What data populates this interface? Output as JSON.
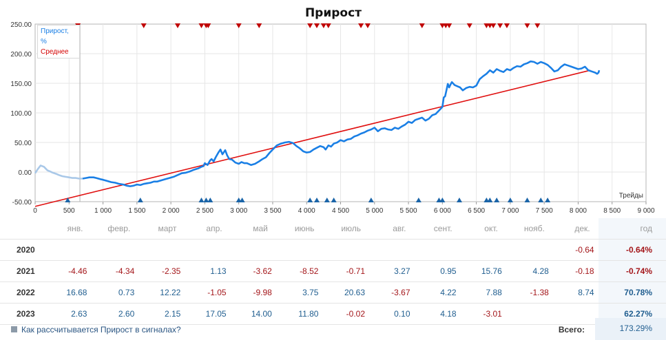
{
  "chart_data": {
    "type": "line",
    "title": "Прирост",
    "xlabel": "Трейды",
    "xlim": [
      0,
      9000
    ],
    "ylim": [
      -50,
      250
    ],
    "x_ticks": [
      "0",
      "500",
      "1 000",
      "1 500",
      "2 000",
      "2 500",
      "3 000",
      "3 500",
      "4 000",
      "4 500",
      "5 000",
      "5 500",
      "6 000",
      "6 500",
      "7 000",
      "7 500",
      "8 000",
      "8 500",
      "9 000"
    ],
    "y_ticks": [
      "250.00",
      "200.00",
      "150.00",
      "100.00",
      "50.00",
      "0.00",
      "-50.00"
    ],
    "grid": true,
    "legend_position": "top-left",
    "colors": {
      "growth": "#1a7fe5",
      "growth_early": "#a9c8e8",
      "average": "#e01010",
      "marker_top": "#c00000",
      "marker_bottom": "#1a64a8"
    },
    "vertical_marker_x": 660,
    "series": [
      {
        "name": "Прирост, %",
        "early_until_x": 700,
        "points": [
          [
            0,
            -2
          ],
          [
            40,
            5
          ],
          [
            80,
            11
          ],
          [
            130,
            9
          ],
          [
            180,
            3
          ],
          [
            220,
            1
          ],
          [
            260,
            -1
          ],
          [
            310,
            -3
          ],
          [
            350,
            -5
          ],
          [
            400,
            -7
          ],
          [
            450,
            -8
          ],
          [
            500,
            -9
          ],
          [
            550,
            -10
          ],
          [
            600,
            -10
          ],
          [
            650,
            -11
          ],
          [
            700,
            -11
          ],
          [
            750,
            -10
          ],
          [
            800,
            -9
          ],
          [
            860,
            -9
          ],
          [
            900,
            -10
          ],
          [
            960,
            -12
          ],
          [
            1000,
            -13
          ],
          [
            1060,
            -15
          ],
          [
            1120,
            -17
          ],
          [
            1180,
            -18
          ],
          [
            1240,
            -20
          ],
          [
            1300,
            -21
          ],
          [
            1350,
            -23
          ],
          [
            1400,
            -24
          ],
          [
            1450,
            -23
          ],
          [
            1500,
            -21
          ],
          [
            1550,
            -22
          ],
          [
            1600,
            -20
          ],
          [
            1650,
            -19
          ],
          [
            1700,
            -18
          ],
          [
            1750,
            -16
          ],
          [
            1800,
            -16
          ],
          [
            1860,
            -14
          ],
          [
            1920,
            -12
          ],
          [
            1980,
            -10
          ],
          [
            2040,
            -8
          ],
          [
            2100,
            -5
          ],
          [
            2160,
            -2
          ],
          [
            2220,
            -1
          ],
          [
            2280,
            1
          ],
          [
            2340,
            4
          ],
          [
            2400,
            6
          ],
          [
            2450,
            9
          ],
          [
            2480,
            10
          ],
          [
            2500,
            15
          ],
          [
            2540,
            12
          ],
          [
            2580,
            20
          ],
          [
            2600,
            22
          ],
          [
            2630,
            18
          ],
          [
            2660,
            25
          ],
          [
            2700,
            33
          ],
          [
            2730,
            38
          ],
          [
            2760,
            30
          ],
          [
            2800,
            37
          ],
          [
            2830,
            28
          ],
          [
            2860,
            22
          ],
          [
            2900,
            21
          ],
          [
            2950,
            16
          ],
          [
            3000,
            14
          ],
          [
            3040,
            17
          ],
          [
            3080,
            15
          ],
          [
            3120,
            15
          ],
          [
            3180,
            12
          ],
          [
            3240,
            14
          ],
          [
            3300,
            18
          ],
          [
            3350,
            22
          ],
          [
            3400,
            25
          ],
          [
            3450,
            32
          ],
          [
            3500,
            38
          ],
          [
            3560,
            45
          ],
          [
            3620,
            48
          ],
          [
            3680,
            50
          ],
          [
            3740,
            51
          ],
          [
            3800,
            49
          ],
          [
            3850,
            44
          ],
          [
            3900,
            40
          ],
          [
            3950,
            35
          ],
          [
            4000,
            33
          ],
          [
            4050,
            34
          ],
          [
            4100,
            38
          ],
          [
            4150,
            41
          ],
          [
            4200,
            44
          ],
          [
            4250,
            42
          ],
          [
            4280,
            38
          ],
          [
            4320,
            45
          ],
          [
            4360,
            43
          ],
          [
            4400,
            48
          ],
          [
            4450,
            50
          ],
          [
            4500,
            54
          ],
          [
            4550,
            52
          ],
          [
            4600,
            55
          ],
          [
            4650,
            56
          ],
          [
            4700,
            60
          ],
          [
            4750,
            62
          ],
          [
            4800,
            65
          ],
          [
            4850,
            67
          ],
          [
            4900,
            70
          ],
          [
            4950,
            72
          ],
          [
            5000,
            75
          ],
          [
            5050,
            69
          ],
          [
            5100,
            73
          ],
          [
            5150,
            74
          ],
          [
            5200,
            72
          ],
          [
            5250,
            71
          ],
          [
            5300,
            75
          ],
          [
            5350,
            73
          ],
          [
            5400,
            77
          ],
          [
            5450,
            80
          ],
          [
            5500,
            85
          ],
          [
            5550,
            83
          ],
          [
            5600,
            88
          ],
          [
            5650,
            90
          ],
          [
            5700,
            92
          ],
          [
            5750,
            87
          ],
          [
            5800,
            90
          ],
          [
            5850,
            96
          ],
          [
            5900,
            98
          ],
          [
            5950,
            104
          ],
          [
            6000,
            110
          ],
          [
            6020,
            126
          ],
          [
            6040,
            128
          ],
          [
            6060,
            138
          ],
          [
            6080,
            149
          ],
          [
            6100,
            143
          ],
          [
            6120,
            148
          ],
          [
            6140,
            152
          ],
          [
            6180,
            147
          ],
          [
            6220,
            145
          ],
          [
            6260,
            143
          ],
          [
            6300,
            138
          ],
          [
            6350,
            142
          ],
          [
            6400,
            144
          ],
          [
            6450,
            143
          ],
          [
            6500,
            146
          ],
          [
            6550,
            157
          ],
          [
            6600,
            162
          ],
          [
            6650,
            166
          ],
          [
            6700,
            172
          ],
          [
            6750,
            168
          ],
          [
            6800,
            174
          ],
          [
            6850,
            171
          ],
          [
            6900,
            169
          ],
          [
            6950,
            174
          ],
          [
            7000,
            172
          ],
          [
            7050,
            176
          ],
          [
            7100,
            179
          ],
          [
            7150,
            178
          ],
          [
            7200,
            182
          ],
          [
            7250,
            184
          ],
          [
            7300,
            187
          ],
          [
            7350,
            186
          ],
          [
            7400,
            183
          ],
          [
            7450,
            186
          ],
          [
            7500,
            184
          ],
          [
            7550,
            181
          ],
          [
            7600,
            176
          ],
          [
            7650,
            170
          ],
          [
            7700,
            172
          ],
          [
            7750,
            178
          ],
          [
            7800,
            182
          ],
          [
            7850,
            180
          ],
          [
            7900,
            178
          ],
          [
            7950,
            176
          ],
          [
            8000,
            174
          ],
          [
            8050,
            175
          ],
          [
            8100,
            178
          ],
          [
            8150,
            172
          ],
          [
            8200,
            170
          ],
          [
            8250,
            168
          ],
          [
            8280,
            166
          ],
          [
            8300,
            168
          ],
          [
            8310,
            172
          ]
        ]
      },
      {
        "name": "Среднее",
        "points": [
          [
            0,
            -58
          ],
          [
            8180,
            172
          ]
        ]
      }
    ],
    "markers_top_x": [
      630,
      1600,
      2100,
      2450,
      2520,
      2550,
      3000,
      3300,
      4050,
      4150,
      4250,
      4320,
      4800,
      4900,
      5700,
      6000,
      6050,
      6100,
      6400,
      6650,
      6700,
      6750,
      6850,
      6950,
      7250,
      7400
    ],
    "markers_bottom_x": [
      480,
      1550,
      2450,
      2520,
      2580,
      3000,
      3050,
      4050,
      4150,
      4300,
      4400,
      4950,
      5650,
      5950,
      6000,
      6250,
      6650,
      6700,
      6800,
      7000,
      7250,
      7450,
      7550
    ]
  },
  "monthly": {
    "months": [
      "янв.",
      "февр.",
      "март",
      "апр.",
      "май",
      "июнь",
      "июль",
      "авг.",
      "сент.",
      "окт.",
      "нояб.",
      "дек."
    ],
    "year_label": "год",
    "rows": [
      {
        "year": "2020",
        "values": [
          "",
          "",
          "",
          "",
          "",
          "",
          "",
          "",
          "",
          "",
          "",
          "-0.64"
        ],
        "total": "-0.64%"
      },
      {
        "year": "2021",
        "values": [
          "-4.46",
          "-4.34",
          "-2.35",
          "1.13",
          "-3.62",
          "-8.52",
          "-0.71",
          "3.27",
          "0.95",
          "15.76",
          "4.28",
          "-0.18"
        ],
        "total": "-0.74%"
      },
      {
        "year": "2022",
        "values": [
          "16.68",
          "0.73",
          "12.22",
          "-1.05",
          "-9.98",
          "3.75",
          "20.63",
          "-3.67",
          "4.22",
          "7.88",
          "-1.38",
          "8.74"
        ],
        "total": "70.78%"
      },
      {
        "year": "2023",
        "values": [
          "2.63",
          "2.60",
          "2.15",
          "17.05",
          "14.00",
          "11.80",
          "-0.02",
          "0.10",
          "4.18",
          "-3.01",
          "",
          ""
        ],
        "total": "62.27%"
      }
    ]
  },
  "footer": {
    "help_link": "Как рассчитывается Прирост в сигналах?",
    "help_icon": "question-square-icon",
    "total_label": "Всего:",
    "total_value": "173.29%"
  }
}
